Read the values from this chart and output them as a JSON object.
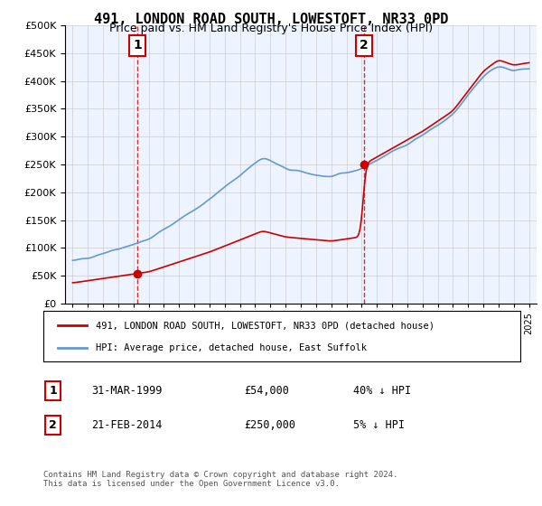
{
  "title": "491, LONDON ROAD SOUTH, LOWESTOFT, NR33 0PD",
  "subtitle": "Price paid vs. HM Land Registry's House Price Index (HPI)",
  "legend_line1": "491, LONDON ROAD SOUTH, LOWESTOFT, NR33 0PD (detached house)",
  "legend_line2": "HPI: Average price, detached house, East Suffolk",
  "purchase1_label": "1",
  "purchase1_date": "31-MAR-1999",
  "purchase1_price": 54000,
  "purchase1_year": 1999.25,
  "purchase2_label": "2",
  "purchase2_date": "21-FEB-2014",
  "purchase2_price": 250000,
  "purchase2_year": 2014.13,
  "footnote": "Contains HM Land Registry data © Crown copyright and database right 2024.\nThis data is licensed under the Open Government Licence v3.0.",
  "table_row1": "1    31-MAR-1999         £54,000         40% ↓ HPI",
  "table_row2": "2    21-FEB-2014         £250,000       5% ↓ HPI",
  "ymax": 500000,
  "xmin": 1995,
  "xmax": 2025.5,
  "red_color": "#cc0000",
  "blue_color": "#6699cc",
  "bg_color": "#ddeeff",
  "plot_bg": "#eef4ff"
}
